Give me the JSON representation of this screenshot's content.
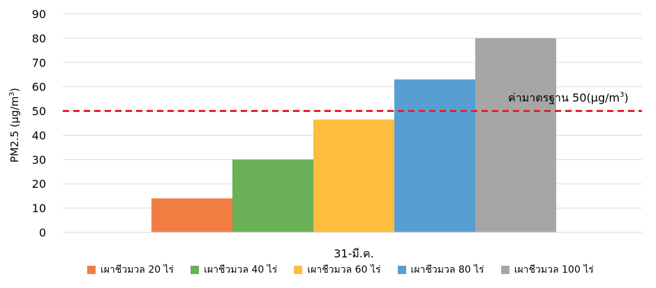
{
  "chart_data": {
    "type": "bar",
    "categories": [
      "31-มี.ค."
    ],
    "series": [
      {
        "name": "เผาชีวมวล 20 ไร่",
        "values": [
          14
        ],
        "color": "#F07E43"
      },
      {
        "name": "เผาชีวมวล 40 ไร่",
        "values": [
          30
        ],
        "color": "#6BAF57"
      },
      {
        "name": "เผาชีวมวล 60 ไร่",
        "values": [
          46.5
        ],
        "color": "#FDBD3F"
      },
      {
        "name": "เผาชีวมวล 80 ไร่",
        "values": [
          63
        ],
        "color": "#579FD3"
      },
      {
        "name": "เผาชีวมวล 100 ไร่",
        "values": [
          80
        ],
        "color": "#A6A6A6"
      }
    ],
    "ylabel_main": "PM2.5 (μg/m",
    "ylabel_sup": "3",
    "ylabel_close": ")",
    "ylim": [
      0,
      90
    ],
    "yticks": [
      "0",
      "10",
      "20",
      "30",
      "40",
      "50",
      "60",
      "70",
      "80",
      "90"
    ],
    "grid": true,
    "legend_position": "bottom",
    "reference_line": {
      "value": 50,
      "color": "#E8202A",
      "label_main": "ค่ามาตรฐาน 50(μg/m",
      "label_sup": "3",
      "label_close": ")"
    }
  }
}
